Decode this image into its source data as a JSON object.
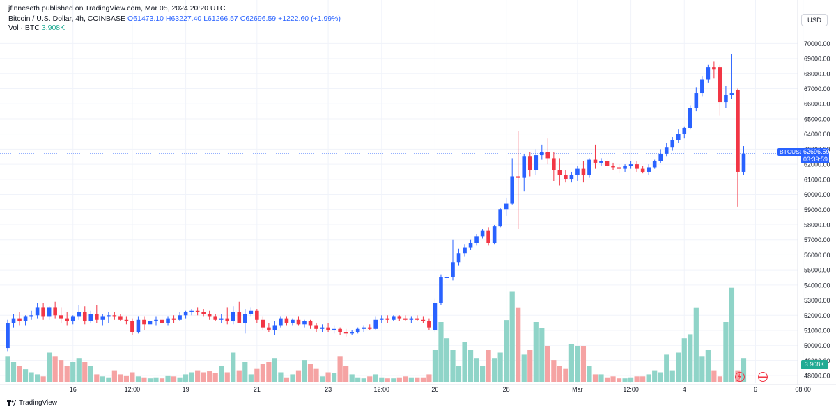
{
  "header": {
    "published_line": "jfinneseth published on TradingView.com, Mar 05, 2024 20:20 UTC",
    "symbol_line": "Bitcoin / U.S. Dollar, 4h, COINBASE",
    "open": "O61473.10",
    "high": "H63227.40",
    "low": "L61266.57",
    "close": "C62696.59",
    "change": "+1222.60 (+1.99%)",
    "vol_label": "Vol · BTC",
    "vol_value": "3.908K"
  },
  "currency_button": "USD",
  "symbol_tag": "BTCUSD",
  "price_tag": {
    "price": "62696.59",
    "countdown": "03:39:59"
  },
  "volume_tag": "3.908K",
  "footer": {
    "brand": "TradingView"
  },
  "colors": {
    "up": "#2962ff",
    "down": "#f23645",
    "vol_up": "#8fd4c8",
    "vol_down": "#f5a3a3",
    "grid": "#f0f3fa",
    "accent": "#2962ff"
  },
  "chart_data": {
    "type": "candlestick",
    "title": "Bitcoin / U.S. Dollar, 4h, COINBASE",
    "ylim": [
      47500,
      70800
    ],
    "y_ticks": [
      48000,
      49000,
      50000,
      51000,
      52000,
      53000,
      54000,
      55000,
      56000,
      57000,
      58000,
      59000,
      60000,
      61000,
      62000,
      63000,
      64000,
      65000,
      66000,
      67000,
      68000,
      69000,
      70000
    ],
    "y_tick_labels": [
      "48000.00",
      "49000.00",
      "50000.00",
      "51000.00",
      "52000.00",
      "53000.00",
      "54000.00",
      "55000.00",
      "56000.00",
      "57000.00",
      "58000.00",
      "59000.00",
      "60000.00",
      "61000.00",
      "62000.00",
      "63000.00",
      "64000.00",
      "65000.00",
      "66000.00",
      "67000.00",
      "68000.00",
      "69000.00",
      "70000.00"
    ],
    "x_ticks": [
      {
        "label": "16",
        "bar": 11
      },
      {
        "label": "12:00",
        "bar": 21
      },
      {
        "label": "19",
        "bar": 30
      },
      {
        "label": "21",
        "bar": 42
      },
      {
        "label": "23",
        "bar": 54
      },
      {
        "label": "12:00",
        "bar": 63
      },
      {
        "label": "26",
        "bar": 72
      },
      {
        "label": "28",
        "bar": 84
      },
      {
        "label": "Mar",
        "bar": 96
      },
      {
        "label": "12:00",
        "bar": 105
      },
      {
        "label": "4",
        "bar": 114
      },
      {
        "label": "6",
        "bar": 126
      },
      {
        "label": "08:00",
        "bar": 134
      }
    ],
    "last_price": 62696.59,
    "candles": [
      {
        "o": 49800,
        "h": 51700,
        "l": 49600,
        "c": 51500
      },
      {
        "o": 51500,
        "h": 52100,
        "l": 51200,
        "c": 51800
      },
      {
        "o": 51800,
        "h": 52200,
        "l": 51300,
        "c": 51600
      },
      {
        "o": 51600,
        "h": 52000,
        "l": 51300,
        "c": 51900
      },
      {
        "o": 51900,
        "h": 52300,
        "l": 51700,
        "c": 52000
      },
      {
        "o": 52000,
        "h": 52800,
        "l": 51800,
        "c": 52500
      },
      {
        "o": 52500,
        "h": 52800,
        "l": 51700,
        "c": 51900
      },
      {
        "o": 51900,
        "h": 52600,
        "l": 51700,
        "c": 52500
      },
      {
        "o": 52500,
        "h": 52900,
        "l": 51800,
        "c": 52000
      },
      {
        "o": 52000,
        "h": 52500,
        "l": 51500,
        "c": 51800
      },
      {
        "o": 51800,
        "h": 52200,
        "l": 51300,
        "c": 51600
      },
      {
        "o": 51600,
        "h": 52000,
        "l": 51400,
        "c": 51900
      },
      {
        "o": 51900,
        "h": 52700,
        "l": 51700,
        "c": 52200
      },
      {
        "o": 52200,
        "h": 52600,
        "l": 51400,
        "c": 51600
      },
      {
        "o": 51600,
        "h": 52300,
        "l": 51500,
        "c": 52100
      },
      {
        "o": 52100,
        "h": 52700,
        "l": 51500,
        "c": 51700
      },
      {
        "o": 51700,
        "h": 52100,
        "l": 51300,
        "c": 51900
      },
      {
        "o": 51900,
        "h": 52200,
        "l": 51500,
        "c": 52000
      },
      {
        "o": 52000,
        "h": 52200,
        "l": 51700,
        "c": 51900
      },
      {
        "o": 51900,
        "h": 52100,
        "l": 51600,
        "c": 51700
      },
      {
        "o": 51700,
        "h": 51900,
        "l": 51400,
        "c": 51600
      },
      {
        "o": 51600,
        "h": 51800,
        "l": 50700,
        "c": 50900
      },
      {
        "o": 50900,
        "h": 51900,
        "l": 50800,
        "c": 51700
      },
      {
        "o": 51700,
        "h": 51900,
        "l": 51000,
        "c": 51400
      },
      {
        "o": 51400,
        "h": 51800,
        "l": 51200,
        "c": 51600
      },
      {
        "o": 51600,
        "h": 51900,
        "l": 51300,
        "c": 51700
      },
      {
        "o": 51700,
        "h": 52000,
        "l": 51400,
        "c": 51500
      },
      {
        "o": 51500,
        "h": 51900,
        "l": 51300,
        "c": 51800
      },
      {
        "o": 51800,
        "h": 52000,
        "l": 51500,
        "c": 51700
      },
      {
        "o": 51700,
        "h": 52200,
        "l": 51600,
        "c": 52000
      },
      {
        "o": 52000,
        "h": 52300,
        "l": 51800,
        "c": 52200
      },
      {
        "o": 52200,
        "h": 52400,
        "l": 52000,
        "c": 52300
      },
      {
        "o": 52300,
        "h": 52500,
        "l": 52000,
        "c": 52200
      },
      {
        "o": 52200,
        "h": 52400,
        "l": 51900,
        "c": 52100
      },
      {
        "o": 52100,
        "h": 52300,
        "l": 51700,
        "c": 51900
      },
      {
        "o": 51900,
        "h": 52100,
        "l": 51600,
        "c": 51700
      },
      {
        "o": 51700,
        "h": 52100,
        "l": 51500,
        "c": 51800
      },
      {
        "o": 51800,
        "h": 52500,
        "l": 51400,
        "c": 51600
      },
      {
        "o": 51600,
        "h": 52600,
        "l": 51400,
        "c": 52200
      },
      {
        "o": 52200,
        "h": 52900,
        "l": 51700,
        "c": 51500
      },
      {
        "o": 51500,
        "h": 52400,
        "l": 50800,
        "c": 52100
      },
      {
        "o": 52100,
        "h": 52500,
        "l": 51900,
        "c": 52300
      },
      {
        "o": 52300,
        "h": 52400,
        "l": 51500,
        "c": 51700
      },
      {
        "o": 51700,
        "h": 51900,
        "l": 51000,
        "c": 51200
      },
      {
        "o": 51200,
        "h": 51500,
        "l": 50900,
        "c": 51000
      },
      {
        "o": 51000,
        "h": 51600,
        "l": 50700,
        "c": 51300
      },
      {
        "o": 51300,
        "h": 51900,
        "l": 51200,
        "c": 51800
      },
      {
        "o": 51800,
        "h": 51900,
        "l": 51300,
        "c": 51500
      },
      {
        "o": 51500,
        "h": 51800,
        "l": 51300,
        "c": 51700
      },
      {
        "o": 51700,
        "h": 51900,
        "l": 51300,
        "c": 51400
      },
      {
        "o": 51400,
        "h": 51700,
        "l": 51200,
        "c": 51600
      },
      {
        "o": 51600,
        "h": 51700,
        "l": 51100,
        "c": 51300
      },
      {
        "o": 51300,
        "h": 51500,
        "l": 50900,
        "c": 51100
      },
      {
        "o": 51100,
        "h": 51400,
        "l": 50900,
        "c": 51200
      },
      {
        "o": 51200,
        "h": 51500,
        "l": 50900,
        "c": 51000
      },
      {
        "o": 51000,
        "h": 51300,
        "l": 50800,
        "c": 51100
      },
      {
        "o": 51100,
        "h": 51200,
        "l": 50700,
        "c": 50900
      },
      {
        "o": 50900,
        "h": 51100,
        "l": 50600,
        "c": 50800
      },
      {
        "o": 50800,
        "h": 51000,
        "l": 50700,
        "c": 50900
      },
      {
        "o": 50900,
        "h": 51200,
        "l": 50800,
        "c": 51100
      },
      {
        "o": 51100,
        "h": 51300,
        "l": 50900,
        "c": 51200
      },
      {
        "o": 51200,
        "h": 51400,
        "l": 51000,
        "c": 51100
      },
      {
        "o": 51100,
        "h": 51900,
        "l": 51000,
        "c": 51700
      },
      {
        "o": 51700,
        "h": 52000,
        "l": 51500,
        "c": 51800
      },
      {
        "o": 51800,
        "h": 52000,
        "l": 51500,
        "c": 51700
      },
      {
        "o": 51700,
        "h": 52000,
        "l": 51600,
        "c": 51900
      },
      {
        "o": 51900,
        "h": 52000,
        "l": 51600,
        "c": 51800
      },
      {
        "o": 51800,
        "h": 52000,
        "l": 51600,
        "c": 51700
      },
      {
        "o": 51700,
        "h": 51900,
        "l": 51500,
        "c": 51800
      },
      {
        "o": 51800,
        "h": 52000,
        "l": 51600,
        "c": 51700
      },
      {
        "o": 51700,
        "h": 51900,
        "l": 51500,
        "c": 51600
      },
      {
        "o": 51600,
        "h": 51800,
        "l": 51000,
        "c": 51200
      },
      {
        "o": 51000,
        "h": 53100,
        "l": 50900,
        "c": 52800
      },
      {
        "o": 52800,
        "h": 54700,
        "l": 52700,
        "c": 54500
      },
      {
        "o": 54500,
        "h": 54700,
        "l": 54300,
        "c": 54500
      },
      {
        "o": 54500,
        "h": 57000,
        "l": 54300,
        "c": 55500
      },
      {
        "o": 55500,
        "h": 56400,
        "l": 55300,
        "c": 56100
      },
      {
        "o": 56100,
        "h": 56700,
        "l": 55900,
        "c": 56500
      },
      {
        "o": 56500,
        "h": 57000,
        "l": 56300,
        "c": 56800
      },
      {
        "o": 56800,
        "h": 57400,
        "l": 56600,
        "c": 57200
      },
      {
        "o": 57200,
        "h": 57700,
        "l": 57100,
        "c": 57600
      },
      {
        "o": 57600,
        "h": 57800,
        "l": 56600,
        "c": 56800
      },
      {
        "o": 56800,
        "h": 58000,
        "l": 56700,
        "c": 57900
      },
      {
        "o": 57900,
        "h": 59100,
        "l": 57800,
        "c": 59000
      },
      {
        "o": 59000,
        "h": 59800,
        "l": 58600,
        "c": 59400
      },
      {
        "o": 59400,
        "h": 62400,
        "l": 59300,
        "c": 61200
      },
      {
        "o": 61200,
        "h": 64200,
        "l": 57700,
        "c": 61100
      },
      {
        "o": 61100,
        "h": 62700,
        "l": 60200,
        "c": 62500
      },
      {
        "o": 62500,
        "h": 62800,
        "l": 61200,
        "c": 61600
      },
      {
        "o": 61600,
        "h": 63000,
        "l": 61300,
        "c": 62600
      },
      {
        "o": 62600,
        "h": 63300,
        "l": 62300,
        "c": 62800
      },
      {
        "o": 62800,
        "h": 63700,
        "l": 62000,
        "c": 62400
      },
      {
        "o": 62400,
        "h": 62800,
        "l": 60900,
        "c": 61600
      },
      {
        "o": 61600,
        "h": 62400,
        "l": 60600,
        "c": 61300
      },
      {
        "o": 61300,
        "h": 61600,
        "l": 60800,
        "c": 61000
      },
      {
        "o": 61000,
        "h": 61500,
        "l": 60800,
        "c": 61300
      },
      {
        "o": 61300,
        "h": 61900,
        "l": 60900,
        "c": 61700
      },
      {
        "o": 61700,
        "h": 62200,
        "l": 60800,
        "c": 61300
      },
      {
        "o": 61300,
        "h": 62400,
        "l": 61100,
        "c": 62300
      },
      {
        "o": 62300,
        "h": 63300,
        "l": 61700,
        "c": 62100
      },
      {
        "o": 62100,
        "h": 62400,
        "l": 61900,
        "c": 62200
      },
      {
        "o": 62200,
        "h": 62400,
        "l": 61800,
        "c": 61900
      },
      {
        "o": 61900,
        "h": 62100,
        "l": 61600,
        "c": 61800
      },
      {
        "o": 61800,
        "h": 62000,
        "l": 61400,
        "c": 61700
      },
      {
        "o": 61700,
        "h": 62000,
        "l": 61500,
        "c": 61900
      },
      {
        "o": 61900,
        "h": 62200,
        "l": 61700,
        "c": 62000
      },
      {
        "o": 62000,
        "h": 62200,
        "l": 61500,
        "c": 61700
      },
      {
        "o": 61700,
        "h": 61900,
        "l": 61400,
        "c": 61500
      },
      {
        "o": 61500,
        "h": 62000,
        "l": 61300,
        "c": 61800
      },
      {
        "o": 61800,
        "h": 62300,
        "l": 61700,
        "c": 62200
      },
      {
        "o": 62200,
        "h": 63000,
        "l": 62100,
        "c": 62700
      },
      {
        "o": 62700,
        "h": 63400,
        "l": 62500,
        "c": 63100
      },
      {
        "o": 63100,
        "h": 63800,
        "l": 62900,
        "c": 63600
      },
      {
        "o": 63600,
        "h": 64300,
        "l": 63400,
        "c": 64000
      },
      {
        "o": 64000,
        "h": 64500,
        "l": 63700,
        "c": 64400
      },
      {
        "o": 64400,
        "h": 65900,
        "l": 64300,
        "c": 65700
      },
      {
        "o": 65700,
        "h": 67100,
        "l": 65500,
        "c": 66700
      },
      {
        "o": 66700,
        "h": 67800,
        "l": 66500,
        "c": 67600
      },
      {
        "o": 67600,
        "h": 68600,
        "l": 67400,
        "c": 68400
      },
      {
        "o": 68400,
        "h": 68800,
        "l": 67700,
        "c": 68300
      },
      {
        "o": 68400,
        "h": 68600,
        "l": 65200,
        "c": 66100
      },
      {
        "o": 66100,
        "h": 67200,
        "l": 65700,
        "c": 66600
      },
      {
        "o": 66600,
        "h": 69300,
        "l": 66300,
        "c": 66700
      },
      {
        "o": 66900,
        "h": 67000,
        "l": 59200,
        "c": 61500
      },
      {
        "o": 61500,
        "h": 63200,
        "l": 61300,
        "c": 62700
      }
    ],
    "volume": [
      26,
      20,
      16,
      13,
      10,
      8,
      6,
      30,
      26,
      22,
      16,
      20,
      24,
      20,
      16,
      8,
      6,
      5,
      12,
      8,
      7,
      10,
      6,
      5,
      4,
      5,
      4,
      7,
      6,
      5,
      8,
      10,
      12,
      10,
      11,
      9,
      16,
      10,
      30,
      12,
      20,
      8,
      14,
      18,
      20,
      24,
      10,
      5,
      8,
      12,
      22,
      18,
      14,
      6,
      10,
      9,
      26,
      16,
      8,
      5,
      4,
      6,
      8,
      5,
      4,
      4,
      5,
      6,
      5,
      5,
      5,
      8,
      32,
      60,
      44,
      32,
      16,
      40,
      32,
      24,
      16,
      32,
      24,
      30,
      62,
      90,
      74,
      28,
      32,
      60,
      54,
      36,
      22,
      16,
      14,
      38,
      36,
      36,
      16,
      8,
      8,
      5,
      6,
      4,
      4,
      5,
      6,
      6,
      8,
      12,
      10,
      28,
      12,
      30,
      44,
      48,
      74,
      26,
      32,
      12,
      6,
      60,
      94,
      12,
      24
    ]
  }
}
